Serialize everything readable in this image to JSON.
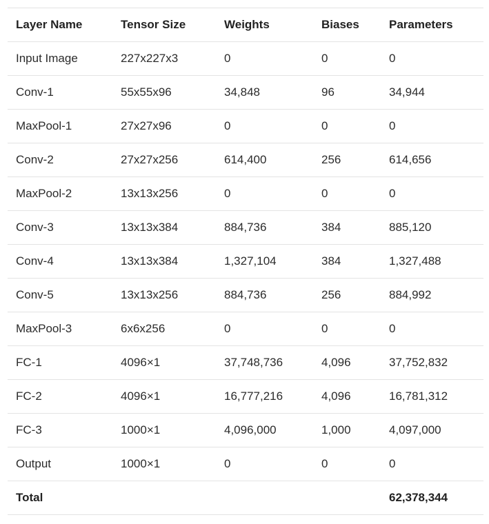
{
  "table": {
    "headers": [
      "Layer Name",
      "Tensor Size",
      "Weights",
      "Biases",
      "Parameters"
    ],
    "rows": [
      [
        "Input Image",
        "227x227x3",
        "0",
        "0",
        "0"
      ],
      [
        "Conv-1",
        "55x55x96",
        "34,848",
        "96",
        "34,944"
      ],
      [
        "MaxPool-1",
        "27x27x96",
        "0",
        "0",
        "0"
      ],
      [
        "Conv-2",
        "27x27x256",
        "614,400",
        "256",
        "614,656"
      ],
      [
        "MaxPool-2",
        "13x13x256",
        "0",
        "0",
        "0"
      ],
      [
        "Conv-3",
        "13x13x384",
        "884,736",
        "384",
        "885,120"
      ],
      [
        "Conv-4",
        "13x13x384",
        "1,327,104",
        "384",
        "1,327,488"
      ],
      [
        "Conv-5",
        "13x13x256",
        "884,736",
        "256",
        "884,992"
      ],
      [
        "MaxPool-3",
        "6x6x256",
        "0",
        "0",
        "0"
      ],
      [
        "FC-1",
        "4096×1",
        "37,748,736",
        "4,096",
        "37,752,832"
      ],
      [
        "FC-2",
        "4096×1",
        "16,777,216",
        "4,096",
        "16,781,312"
      ],
      [
        "FC-3",
        "1000×1",
        "4,096,000",
        "1,000",
        "4,097,000"
      ],
      [
        "Output",
        "1000×1",
        "0",
        "0",
        "0"
      ]
    ],
    "total": {
      "label": "Total",
      "parameters": "62,378,344"
    }
  }
}
